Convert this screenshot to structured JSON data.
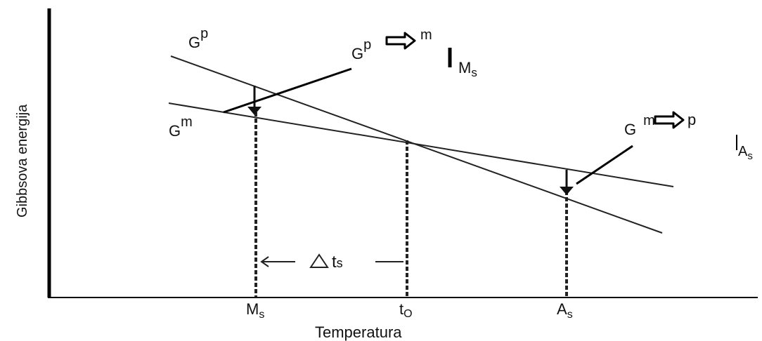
{
  "axes": {
    "ylabel": "Gibbsova energija",
    "xlabel": "Temperatura"
  },
  "x_ticks": {
    "ms": {
      "main": "M",
      "sub": "s"
    },
    "to": {
      "main": "t",
      "sub": "O"
    },
    "as": {
      "main": "A",
      "sub": "s"
    }
  },
  "curves": {
    "gp": {
      "main": "G",
      "sup": "p"
    },
    "gm": {
      "main": "G",
      "sup": "m"
    }
  },
  "annotations": {
    "gp_to_m": {
      "main": "G",
      "sup_from": "p",
      "sup_to": "m"
    },
    "gm_to_p": {
      "main": "G",
      "sup_from": "m",
      "sup_to": "p"
    },
    "ms_marker": {
      "main": "M",
      "sub": "s"
    },
    "as_marker": {
      "main": "A",
      "sub": "s"
    },
    "delta_ts": {
      "main": "t",
      "sub": "s"
    }
  }
}
